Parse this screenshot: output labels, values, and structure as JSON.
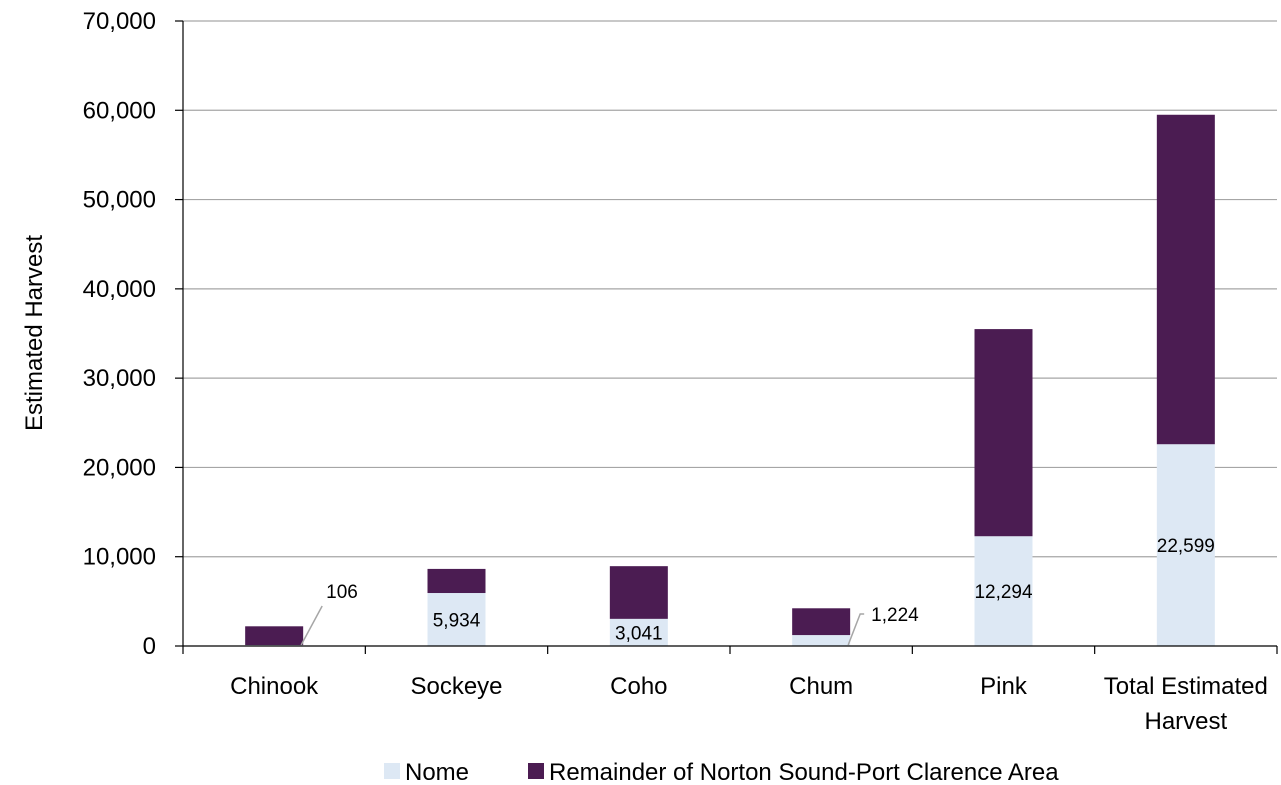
{
  "chart_data": {
    "type": "bar",
    "stacked": true,
    "title": "",
    "xlabel": "",
    "ylabel": "Estimated Harvest",
    "ylim": [
      0,
      70000
    ],
    "yticks": [
      0,
      10000,
      20000,
      30000,
      40000,
      50000,
      60000,
      70000
    ],
    "ytick_labels": [
      "0",
      "10,000",
      "20,000",
      "30,000",
      "40,000",
      "50,000",
      "60,000",
      "70,000"
    ],
    "grid": true,
    "legend_position": "bottom",
    "categories": [
      [
        "Chinook"
      ],
      [
        "Sockeye"
      ],
      [
        "Coho"
      ],
      [
        "Chum"
      ],
      [
        "Pink"
      ],
      [
        "Total Estimated",
        "Harvest"
      ]
    ],
    "series": [
      {
        "name": "Nome",
        "color": "#dde8f4",
        "values": [
          106,
          5934,
          3041,
          1224,
          12294,
          22599
        ],
        "labels": [
          "106",
          "5,934",
          "3,041",
          "1,224",
          "12,294",
          "22,599"
        ]
      },
      {
        "name": "Remainder of Norton Sound-Port Clarence Area",
        "color": "#4b1c52",
        "values": [
          2100,
          2700,
          5900,
          3000,
          23200,
          36900
        ]
      }
    ]
  }
}
